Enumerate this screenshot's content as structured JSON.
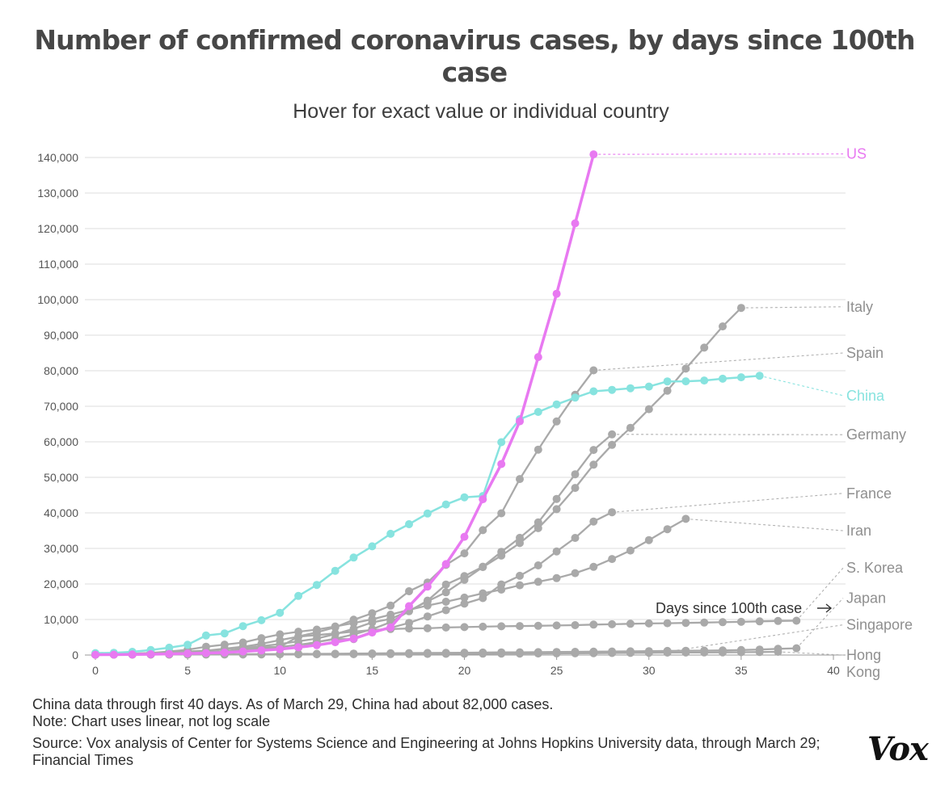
{
  "title": "Number of confirmed coronavirus cases, by days since 100th case",
  "subtitle": "Hover for exact value or individual country",
  "notes": [
    "China data through first 40 days. As of March 29, China had about 82,000 cases.",
    "Note: Chart uses linear, not log scale"
  ],
  "source": "Source: Vox analysis of Center for Systems Science and Engineering at Johns Hopkins University data, through March 29; Financial Times",
  "logo_text": "Vox",
  "colors": {
    "us": "#e879f1",
    "china": "#87e3df",
    "other": "#a9a9a9",
    "grid": "#dcdcdc",
    "axis_text": "#555555"
  },
  "chart_data": {
    "type": "line",
    "title": "Number of confirmed coronavirus cases, by days since 100th case",
    "xlabel": "Days since 100th case",
    "ylabel": "",
    "xlim": [
      0,
      40
    ],
    "ylim": [
      0,
      140000
    ],
    "x_ticks": [
      0,
      5,
      10,
      15,
      20,
      25,
      30,
      35,
      40
    ],
    "y_ticks": [
      0,
      10000,
      20000,
      30000,
      40000,
      50000,
      60000,
      70000,
      80000,
      90000,
      100000,
      110000,
      120000,
      130000,
      140000
    ],
    "y_tick_labels": [
      "0",
      "10,000",
      "20,000",
      "30,000",
      "40,000",
      "50,000",
      "60,000",
      "70,000",
      "80,000",
      "90,000",
      "100,000",
      "110,000",
      "120,000",
      "130,000",
      "140,000"
    ],
    "annotation": "Days since 100th case",
    "series": [
      {
        "name": "Hong Kong",
        "label": "Hong\nKong",
        "color_key": "other",
        "label_value": 0,
        "values": [
          100,
          110,
          120,
          130,
          140,
          150,
          160,
          170,
          180,
          190,
          200,
          210,
          220,
          240,
          260,
          270,
          280,
          300,
          320,
          340,
          360,
          380,
          400,
          420,
          440,
          460,
          480,
          520,
          560,
          600,
          640,
          680,
          700,
          720,
          760,
          800,
          840,
          900
        ]
      },
      {
        "name": "Japan",
        "label": "Japan",
        "color_key": "other",
        "label_value": 16000,
        "values": [
          105,
          110,
          130,
          150,
          160,
          180,
          200,
          220,
          240,
          260,
          280,
          300,
          330,
          360,
          400,
          450,
          500,
          540,
          580,
          620,
          660,
          700,
          740,
          780,
          820,
          860,
          900,
          950,
          1000,
          1050,
          1100,
          1150,
          1200,
          1250,
          1300,
          1400,
          1550,
          1750,
          1900
        ]
      },
      {
        "name": "Singapore",
        "label": "Singapore",
        "color_key": "other",
        "label_value": 8500,
        "values": [
          100,
          110,
          120,
          130,
          140,
          150,
          160,
          170,
          180,
          200,
          220,
          240,
          260,
          280,
          300,
          330,
          360,
          390,
          420,
          450,
          490,
          530,
          570,
          610,
          650,
          700,
          750,
          800,
          850,
          880,
          900,
          930
        ]
      },
      {
        "name": "S. Korea",
        "label": "S. Korea",
        "color_key": "other",
        "label_value": 24500,
        "values": [
          104,
          200,
          346,
          602,
          763,
          977,
          1261,
          1766,
          2337,
          3150,
          4212,
          5186,
          5621,
          6088,
          6593,
          7041,
          7313,
          7478,
          7513,
          7755,
          7869,
          7979,
          8086,
          8162,
          8236,
          8320,
          8413,
          8565,
          8652,
          8799,
          8897,
          8961,
          9037,
          9137,
          9241,
          9332,
          9478,
          9583,
          9661
        ]
      },
      {
        "name": "Iran",
        "label": "Iran",
        "color_key": "other",
        "label_value": 35000,
        "values": [
          139,
          245,
          388,
          593,
          978,
          1501,
          2336,
          2922,
          3513,
          4747,
          5823,
          6566,
          7161,
          8042,
          9000,
          10075,
          11364,
          12729,
          13938,
          14991,
          16169,
          17361,
          18407,
          19644,
          20610,
          21638,
          23049,
          24811,
          27017,
          29406,
          32332,
          35408,
          38309
        ]
      },
      {
        "name": "France",
        "label": "France",
        "color_key": "other",
        "label_value": 45500,
        "values": [
          130,
          191,
          212,
          282,
          420,
          613,
          706,
          1116,
          1402,
          1774,
          2269,
          2860,
          3640,
          4469,
          4499,
          6633,
          7652,
          9043,
          10871,
          12612,
          14459,
          16018,
          19856,
          22304,
          25233,
          29155,
          32964,
          37575,
          40174
        ]
      },
      {
        "name": "Germany",
        "label": "Germany",
        "color_key": "other",
        "label_value": 62000,
        "values": [
          130,
          159,
          196,
          262,
          482,
          670,
          799,
          1040,
          1176,
          1457,
          1908,
          2078,
          3675,
          4585,
          5795,
          7272,
          9257,
          12327,
          15320,
          19848,
          22213,
          24873,
          29056,
          32986,
          37323,
          43938,
          50871,
          57695,
          62095
        ]
      },
      {
        "name": "Spain",
        "label": "Spain",
        "color_key": "other",
        "label_value": 85000,
        "values": [
          120,
          165,
          222,
          259,
          400,
          500,
          673,
          1073,
          1695,
          2277,
          2277,
          5232,
          6391,
          7798,
          9942,
          11748,
          13910,
          17963,
          20410,
          25374,
          28603,
          35136,
          39885,
          49515,
          57786,
          65719,
          73235,
          80110
        ]
      },
      {
        "name": "Italy",
        "label": "Italy",
        "color_key": "other",
        "label_value": 98000,
        "values": [
          155,
          229,
          322,
          453,
          655,
          888,
          1128,
          1694,
          2036,
          2502,
          3089,
          3858,
          4636,
          5883,
          7375,
          9172,
          10149,
          12462,
          15113,
          17660,
          21157,
          24747,
          27980,
          31506,
          35713,
          41035,
          47021,
          53578,
          59138,
          63927,
          69176,
          74386,
          80589,
          86498,
          92472,
          97689
        ]
      },
      {
        "name": "China",
        "label": "China",
        "color_key": "china",
        "label_value": 73000,
        "values": [
          548,
          643,
          920,
          1406,
          2075,
          2877,
          5509,
          6087,
          8141,
          9802,
          11891,
          16630,
          19716,
          23707,
          27440,
          30587,
          34110,
          36814,
          39829,
          42354,
          44386,
          44759,
          59895,
          66358,
          68413,
          70513,
          72434,
          74211,
          74619,
          75077,
          75550,
          77001,
          77022,
          77241,
          77754,
          78166,
          78600
        ]
      },
      {
        "name": "US",
        "label": "US",
        "color_key": "us",
        "label_value": 141000,
        "values": [
          100,
          124,
          158,
          221,
          319,
          435,
          541,
          704,
          994,
          1301,
          1630,
          2183,
          2770,
          3613,
          4596,
          6344,
          7781,
          13747,
          19273,
          25600,
          33276,
          43847,
          53740,
          65778,
          83836,
          101657,
          121478,
          140886
        ]
      }
    ]
  }
}
